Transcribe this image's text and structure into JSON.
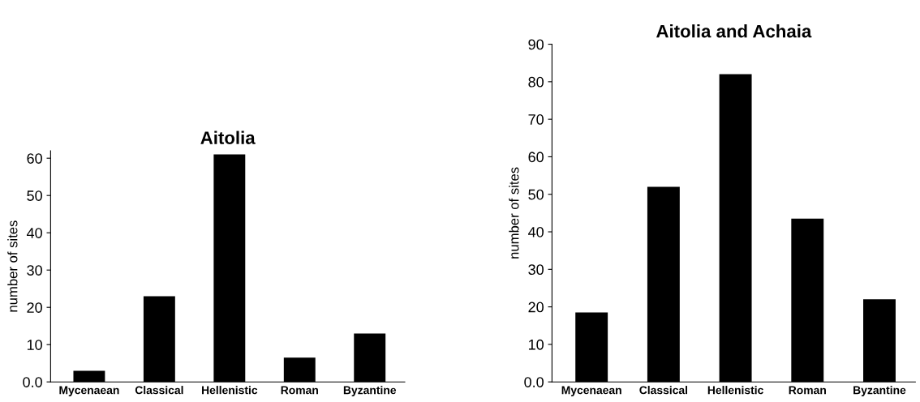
{
  "chart_data": [
    {
      "type": "bar",
      "title": "Aitolia",
      "ylabel": "number of sites",
      "categories": [
        "Mycenaean",
        "Classical",
        "Hellenistic",
        "Roman",
        "Byzantine"
      ],
      "values": [
        3,
        23,
        61,
        6.5,
        13
      ],
      "color": "#000000",
      "ylim": [
        0,
        62
      ],
      "yticks": [
        {
          "value": 0,
          "label": "0.0"
        },
        10,
        20,
        30,
        40,
        50,
        60
      ],
      "grid": false
    },
    {
      "type": "bar",
      "title": "Aitolia and Achaia",
      "ylabel": "number of sites",
      "categories": [
        "Mycenaean",
        "Classical",
        "Hellenistic",
        "Roman",
        "Byzantine"
      ],
      "values": [
        18.5,
        52,
        82,
        43.5,
        22
      ],
      "color": "#000000",
      "ylim": [
        0,
        90
      ],
      "yticks": [
        {
          "value": 0,
          "label": "0.0"
        },
        10,
        20,
        30,
        40,
        50,
        60,
        70,
        80,
        90
      ],
      "grid": false
    }
  ]
}
